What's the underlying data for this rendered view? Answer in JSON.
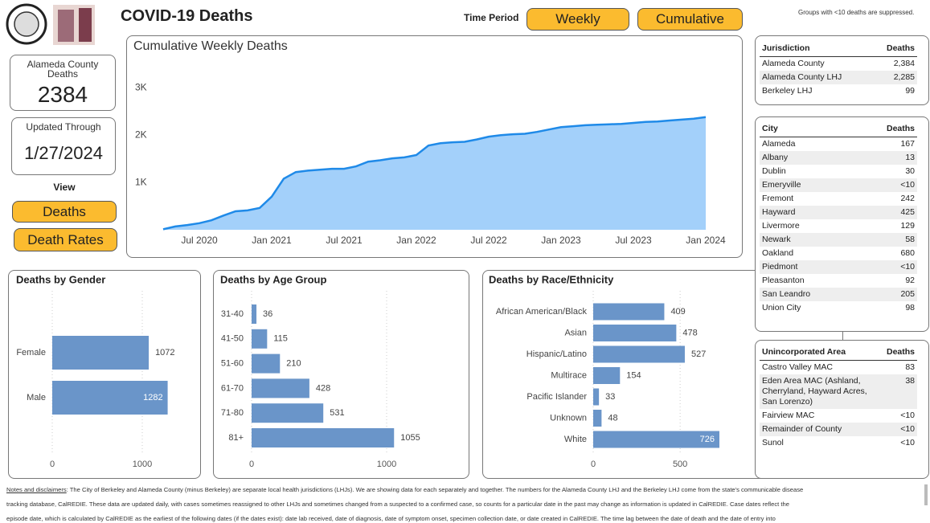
{
  "header": {
    "title": "COVID-19 Deaths",
    "time_period_label": "Time Period",
    "suppression_note": "Groups with <10 deaths are suppressed."
  },
  "time_period_buttons": [
    "Weekly",
    "Cumulative"
  ],
  "kpis": [
    {
      "label_lines": [
        "Alameda County",
        "Deaths"
      ],
      "value": 2384
    },
    {
      "label_lines": [
        "Updated Through"
      ],
      "value": "1/27/2024"
    }
  ],
  "view": {
    "label": "View",
    "buttons": [
      "Deaths",
      "Death Rates"
    ]
  },
  "chart_data": [
    {
      "type": "area",
      "title": "Cumulative Weekly Deaths",
      "color": "#a3d0fa",
      "line_color": "#1f8ae8",
      "x": [
        "2020-04",
        "2020-05",
        "2020-06",
        "2020-07",
        "2020-08",
        "2020-09",
        "2020-10",
        "2020-11",
        "2020-12",
        "2021-01",
        "2021-02",
        "2021-03",
        "2021-04",
        "2021-05",
        "2021-06",
        "2021-07",
        "2021-08",
        "2021-09",
        "2021-10",
        "2021-11",
        "2021-12",
        "2022-01",
        "2022-02",
        "2022-03",
        "2022-04",
        "2022-05",
        "2022-06",
        "2022-07",
        "2022-08",
        "2022-09",
        "2022-10",
        "2022-11",
        "2022-12",
        "2023-01",
        "2023-02",
        "2023-03",
        "2023-04",
        "2023-05",
        "2023-06",
        "2023-07",
        "2023-08",
        "2023-09",
        "2023-10",
        "2023-11",
        "2023-12",
        "2024-01"
      ],
      "values": [
        10,
        70,
        100,
        140,
        200,
        300,
        390,
        410,
        460,
        700,
        1080,
        1220,
        1250,
        1270,
        1290,
        1290,
        1340,
        1440,
        1470,
        1510,
        1530,
        1580,
        1780,
        1830,
        1850,
        1860,
        1910,
        1970,
        2000,
        2020,
        2030,
        2070,
        2120,
        2170,
        2190,
        2210,
        2220,
        2230,
        2240,
        2260,
        2280,
        2290,
        2310,
        2330,
        2350,
        2384
      ],
      "xlim": [
        "2020-04",
        "2024-01"
      ],
      "xticks": [
        {
          "value": "2020-07",
          "label": "Jul 2020"
        },
        {
          "value": "2021-01",
          "label": "Jan 2021"
        },
        {
          "value": "2021-07",
          "label": "Jul 2021"
        },
        {
          "value": "2022-01",
          "label": "Jan 2022"
        },
        {
          "value": "2022-07",
          "label": "Jul 2022"
        },
        {
          "value": "2023-01",
          "label": "Jan 2023"
        },
        {
          "value": "2023-07",
          "label": "Jul 2023"
        },
        {
          "value": "2024-01",
          "label": "Jan 2024"
        }
      ],
      "ylim": [
        0,
        3500
      ],
      "yticks": [
        {
          "value": 1000,
          "label": "1K"
        },
        {
          "value": 2000,
          "label": "2K"
        },
        {
          "value": 3000,
          "label": "3K"
        }
      ],
      "grid": false
    },
    {
      "type": "bar",
      "orientation": "horizontal",
      "title": "Deaths by Gender",
      "color": "#6a95c9",
      "categories": [
        "Female",
        "Male"
      ],
      "values": [
        1072,
        1282
      ],
      "xlim": [
        0,
        1500
      ],
      "xticks": [
        0,
        1000
      ],
      "grid": true
    },
    {
      "type": "bar",
      "orientation": "horizontal",
      "title": "Deaths by Age Group",
      "color": "#6a95c9",
      "categories": [
        "31-40",
        "41-50",
        "51-60",
        "61-70",
        "71-80",
        "81+"
      ],
      "values": [
        36,
        115,
        210,
        428,
        531,
        1055
      ],
      "xlim": [
        0,
        1500
      ],
      "xticks": [
        0,
        1000
      ],
      "grid": true
    },
    {
      "type": "bar",
      "orientation": "horizontal",
      "title": "Deaths by Race/Ethnicity",
      "color": "#6a95c9",
      "categories": [
        "African American/Black",
        "Asian",
        "Hispanic/Latino",
        "Multirace",
        "Pacific Islander",
        "Unknown",
        "White"
      ],
      "values": [
        409,
        478,
        527,
        154,
        33,
        48,
        726
      ],
      "xlim": [
        0,
        800
      ],
      "xticks": [
        0,
        500
      ],
      "grid": true
    }
  ],
  "tables": [
    {
      "columns": [
        "Jurisdiction",
        "Deaths"
      ],
      "rows": [
        [
          "Alameda County",
          "2,384"
        ],
        [
          "Alameda County LHJ",
          "2,285"
        ],
        [
          "Berkeley LHJ",
          "99"
        ]
      ]
    },
    {
      "columns": [
        "City",
        "Deaths"
      ],
      "rows": [
        [
          "Alameda",
          "167"
        ],
        [
          "Albany",
          "13"
        ],
        [
          "Dublin",
          "30"
        ],
        [
          "Emeryville",
          "<10"
        ],
        [
          "Fremont",
          "242"
        ],
        [
          "Hayward",
          "425"
        ],
        [
          "Livermore",
          "129"
        ],
        [
          "Newark",
          "58"
        ],
        [
          "Oakland",
          "680"
        ],
        [
          "Piedmont",
          "<10"
        ],
        [
          "Pleasanton",
          "92"
        ],
        [
          "San Leandro",
          "205"
        ],
        [
          "Union City",
          "98"
        ]
      ]
    },
    {
      "columns": [
        "Unincorporated Area",
        "Deaths"
      ],
      "rows": [
        [
          "Castro Valley MAC",
          "83"
        ],
        [
          "Eden Area MAC (Ashland, Cherryland, Hayward Acres, San Lorenzo)",
          "38"
        ],
        [
          "Fairview MAC",
          "<10"
        ],
        [
          "Remainder of County",
          "<10"
        ],
        [
          "Sunol",
          "<10"
        ]
      ]
    }
  ],
  "notes": {
    "label": "Notes and disclaimers",
    "lines": [
      ": The City of Berkeley and Alameda County (minus Berkeley) are separate local health jurisdictions (LHJs). We are showing data for each separately and together. The numbers for the Alameda County LHJ and the Berkeley LHJ come from the state's communicable disease",
      "tracking database, CalREDIE. These data are updated daily, with cases sometimes reassigned to other LHJs and sometimes changed from a suspected to a confirmed case, so counts for a particular date in the past may change as information is updated in CalREDIE. Case dates reflect the",
      "episode date, which is calculated by CalREDIE as the earliest of the following dates (if the dates exist): date lab received, date of diagnosis, date of symptom onset, specimen collection date, or date created in CalREDIE. The time lag between the date of death and the date of entry into"
    ]
  }
}
